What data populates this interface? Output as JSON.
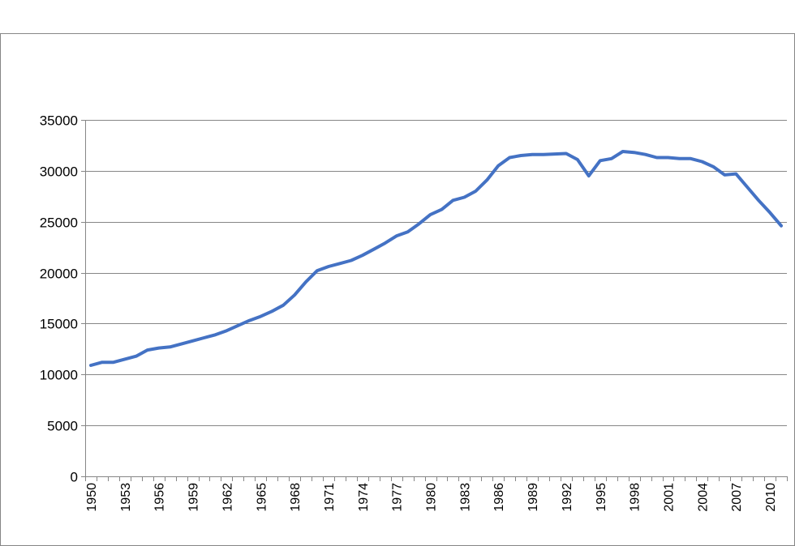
{
  "chart_data": {
    "type": "line",
    "title": "",
    "xlabel": "",
    "ylabel": "",
    "ylim": [
      0,
      35000
    ],
    "yticks": [
      0,
      5000,
      10000,
      15000,
      20000,
      25000,
      30000,
      35000
    ],
    "xlim": [
      1950,
      2011
    ],
    "xticks": [
      1950,
      1953,
      1956,
      1959,
      1962,
      1965,
      1968,
      1971,
      1974,
      1977,
      1980,
      1983,
      1986,
      1989,
      1992,
      1995,
      1998,
      2001,
      2004,
      2007,
      2010
    ],
    "grid": "horizontal",
    "legend": "none",
    "series": [
      {
        "color": "#4472c4",
        "x": [
          1950,
          1951,
          1952,
          1953,
          1954,
          1955,
          1956,
          1957,
          1958,
          1959,
          1960,
          1961,
          1962,
          1963,
          1964,
          1965,
          1966,
          1967,
          1968,
          1969,
          1970,
          1971,
          1972,
          1973,
          1974,
          1975,
          1976,
          1977,
          1978,
          1979,
          1980,
          1981,
          1982,
          1983,
          1984,
          1985,
          1986,
          1987,
          1988,
          1989,
          1990,
          1991,
          1992,
          1993,
          1994,
          1995,
          1996,
          1997,
          1998,
          1999,
          2000,
          2001,
          2002,
          2003,
          2004,
          2005,
          2006,
          2007,
          2008,
          2009,
          2010,
          2011
        ],
        "values": [
          10900,
          11200,
          11200,
          11500,
          11800,
          12400,
          12600,
          12700,
          13000,
          13300,
          13600,
          13900,
          14300,
          14800,
          15300,
          15700,
          16200,
          16800,
          17800,
          19100,
          20200,
          20600,
          20900,
          21200,
          21700,
          22300,
          22900,
          23600,
          24000,
          24800,
          25700,
          26200,
          27100,
          27400,
          28000,
          29100,
          30500,
          31300,
          31500,
          31600,
          31600,
          31650,
          31700,
          31100,
          29500,
          31000,
          31200,
          31900,
          31800,
          31600,
          31300,
          31300,
          31200,
          31200,
          30900,
          30400,
          29600,
          29700,
          28400,
          27100,
          25900,
          24600
        ]
      }
    ]
  }
}
